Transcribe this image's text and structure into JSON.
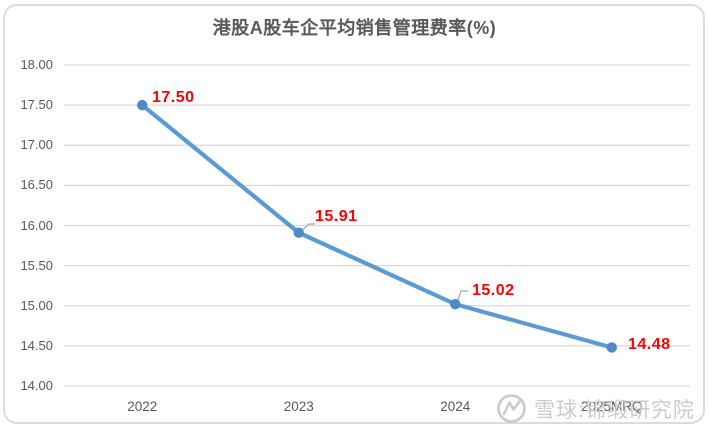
{
  "page": {
    "background": "#FFFFFF",
    "frame_border_color": "#DCDCDC"
  },
  "chart_data": {
    "type": "line",
    "title": "港股A股车企平均销售管理费率(%)",
    "categories": [
      "2022",
      "2023",
      "2024",
      "2025MRQ"
    ],
    "values": [
      17.5,
      15.91,
      15.02,
      14.48
    ],
    "data_labels": [
      "17.50",
      "15.91",
      "15.02",
      "14.48"
    ],
    "xlabel": "",
    "ylabel": "",
    "ylim": [
      14.0,
      18.0
    ],
    "ytick_step": 0.5,
    "yticks": [
      "18.00",
      "17.50",
      "17.00",
      "16.50",
      "16.00",
      "15.50",
      "15.00",
      "14.50",
      "14.00"
    ],
    "grid": true,
    "legend_position": "none",
    "line_color": "#5B9BD5",
    "marker_color": "#4E8AC6",
    "data_label_color": "#FF0000",
    "grid_color": "#D9D9D9",
    "tick_color": "#595959",
    "title_color": "#595959",
    "leader_line_color": "#A6A6A6"
  },
  "watermark": {
    "text": "雪球:锦缎研究院",
    "logo": "xueqiu-snowball-logo",
    "color": "#C7C7C7"
  }
}
